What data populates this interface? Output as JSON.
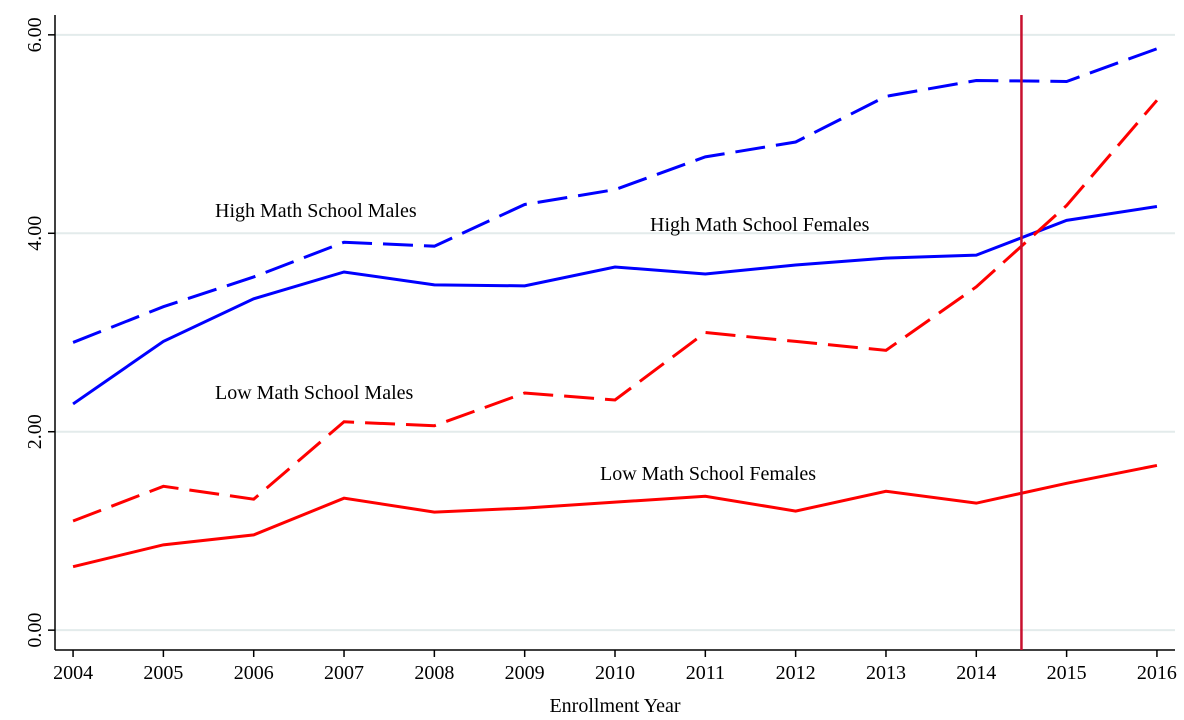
{
  "chart_data": {
    "type": "line",
    "x_label": "Enrollment Year",
    "x": [
      2004,
      2005,
      2006,
      2007,
      2008,
      2009,
      2010,
      2011,
      2012,
      2013,
      2014,
      2015,
      2016
    ],
    "xlim": [
      2003.8,
      2016.2
    ],
    "xticks": [
      2004,
      2005,
      2006,
      2007,
      2008,
      2009,
      2010,
      2011,
      2012,
      2013,
      2014,
      2015,
      2016
    ],
    "ylim": [
      -0.2,
      6.2
    ],
    "yticks": [
      {
        "value": 0,
        "label": "0.00"
      },
      {
        "value": 2,
        "label": "2.00"
      },
      {
        "value": 4,
        "label": "4.00"
      },
      {
        "value": 6,
        "label": "6.00"
      }
    ],
    "grid": true,
    "vline": {
      "x": 2014.5,
      "color": "#c8102e"
    },
    "series": [
      {
        "name": "High Math School Males",
        "color": "#0000ff",
        "dashed": true,
        "values": [
          2.9,
          3.26,
          3.56,
          3.91,
          3.87,
          4.29,
          4.44,
          4.77,
          4.92,
          5.38,
          5.54,
          5.53,
          5.86
        ]
      },
      {
        "name": "High Math School Females",
        "color": "#0000ff",
        "dashed": false,
        "values": [
          2.28,
          2.91,
          3.34,
          3.61,
          3.48,
          3.47,
          3.66,
          3.59,
          3.68,
          3.75,
          3.78,
          4.13,
          4.27
        ]
      },
      {
        "name": "Low Math School Males",
        "color": "#ff0000",
        "dashed": true,
        "values": [
          1.1,
          1.45,
          1.32,
          2.1,
          2.06,
          2.39,
          2.32,
          3.0,
          2.91,
          2.82,
          3.46,
          4.28,
          5.34
        ]
      },
      {
        "name": "Low Math School Females",
        "color": "#ff0000",
        "dashed": false,
        "values": [
          0.64,
          0.86,
          0.96,
          1.33,
          1.19,
          1.23,
          1.29,
          1.35,
          1.2,
          1.4,
          1.28,
          1.48,
          1.66
        ]
      }
    ]
  }
}
